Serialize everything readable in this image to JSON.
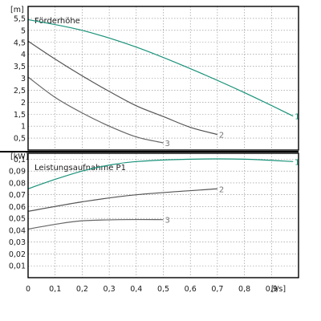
{
  "chart_data": [
    {
      "type": "line",
      "title": "Förderhöhe",
      "unit_label": "[m]",
      "xlabel": "[l/s]",
      "xlim": [
        0,
        1.0
      ],
      "ylim": [
        0,
        6.0
      ],
      "y_ticks": [
        "0,5",
        "1",
        "1,5",
        "2",
        "2,5",
        "3",
        "3,5",
        "4",
        "4,5",
        "5",
        "5,5"
      ],
      "y_tick_values": [
        0.5,
        1,
        1.5,
        2,
        2.5,
        3,
        3.5,
        4,
        4.5,
        5,
        5.5
      ],
      "grid": true,
      "series": [
        {
          "name": "1",
          "color": "#19927a",
          "points": [
            [
              0,
              5.45
            ],
            [
              0.2,
              5.0
            ],
            [
              0.4,
              4.3
            ],
            [
              0.6,
              3.4
            ],
            [
              0.8,
              2.4
            ],
            [
              0.98,
              1.42
            ]
          ]
        },
        {
          "name": "2",
          "color": "#555555",
          "points": [
            [
              0,
              4.55
            ],
            [
              0.1,
              3.8
            ],
            [
              0.2,
              3.1
            ],
            [
              0.3,
              2.45
            ],
            [
              0.4,
              1.85
            ],
            [
              0.5,
              1.4
            ],
            [
              0.6,
              0.95
            ],
            [
              0.7,
              0.65
            ]
          ]
        },
        {
          "name": "3",
          "color": "#666666",
          "points": [
            [
              0,
              3.05
            ],
            [
              0.1,
              2.2
            ],
            [
              0.2,
              1.55
            ],
            [
              0.3,
              1.0
            ],
            [
              0.4,
              0.55
            ],
            [
              0.5,
              0.3
            ]
          ]
        }
      ]
    },
    {
      "type": "line",
      "title": "Leistungsaufnahme P1",
      "unit_label": "[kW]",
      "xlabel": "[l/s]",
      "xlim": [
        0,
        1.0
      ],
      "ylim": [
        0,
        0.105
      ],
      "x_ticks": [
        "0",
        "0,1",
        "0,2",
        "0,3",
        "0,4",
        "0,5",
        "0,6",
        "0,7",
        "0,8",
        "0,9"
      ],
      "x_tick_values": [
        0,
        0.1,
        0.2,
        0.3,
        0.4,
        0.5,
        0.6,
        0.7,
        0.8,
        0.9
      ],
      "y_ticks": [
        "0,01",
        "0,02",
        "0,03",
        "0,04",
        "0,05",
        "0,06",
        "0,07",
        "0,08",
        "0,09",
        "0,1"
      ],
      "y_tick_values": [
        0.01,
        0.02,
        0.03,
        0.04,
        0.05,
        0.06,
        0.07,
        0.08,
        0.09,
        0.1
      ],
      "grid": true,
      "series": [
        {
          "name": "1",
          "color": "#19927a",
          "points": [
            [
              0,
              0.075
            ],
            [
              0.1,
              0.083
            ],
            [
              0.2,
              0.09
            ],
            [
              0.3,
              0.095
            ],
            [
              0.4,
              0.098
            ],
            [
              0.6,
              0.1
            ],
            [
              0.8,
              0.1
            ],
            [
              0.98,
              0.098
            ]
          ]
        },
        {
          "name": "2",
          "color": "#555555",
          "points": [
            [
              0,
              0.056
            ],
            [
              0.2,
              0.064
            ],
            [
              0.4,
              0.07
            ],
            [
              0.7,
              0.075
            ]
          ]
        },
        {
          "name": "3",
          "color": "#666666",
          "points": [
            [
              0,
              0.041
            ],
            [
              0.1,
              0.045
            ],
            [
              0.2,
              0.048
            ],
            [
              0.35,
              0.049
            ],
            [
              0.5,
              0.049
            ]
          ]
        }
      ]
    }
  ]
}
